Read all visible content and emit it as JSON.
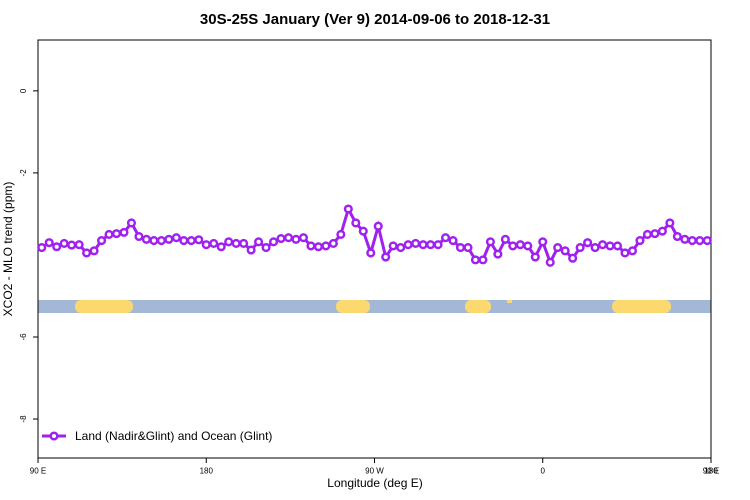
{
  "chart_data": {
    "type": "line",
    "title": "30S-25S January (Ver 9)   2014-09-06 to 2018-12-31",
    "x_label": "Longitude (deg E)",
    "y_label": "XCO2 - MLO trend (ppm)",
    "xlim": [
      90,
      450
    ],
    "xticks": [
      {
        "value": 90,
        "label": "90 E"
      },
      180,
      {
        "value": 270,
        "label": "90 W"
      },
      {
        "value": 360,
        "label": "0"
      },
      {
        "value": 450,
        "label": "90 E"
      },
      {
        "value": 540,
        "label": "180"
      }
    ],
    "ylim": [
      -8.95,
      1.24
    ],
    "yticks": [
      0,
      -2,
      -6,
      -8
    ],
    "legend": "bottom-left",
    "series": [
      {
        "name": "Land (Nadir&Glint) and Ocean (Glint)",
        "color": "#a020f0",
        "x": [
          92,
          96,
          100,
          104,
          108,
          112,
          116,
          120,
          124,
          128,
          132,
          136,
          140,
          144,
          148,
          152,
          156,
          160,
          164,
          168,
          172,
          176,
          180,
          184,
          188,
          192,
          196,
          200,
          204,
          208,
          212,
          216,
          220,
          224,
          228,
          232,
          236,
          240,
          244,
          248,
          252,
          256,
          260,
          264,
          268,
          272,
          276,
          280,
          284,
          288,
          292,
          296,
          300,
          304,
          308,
          312,
          316,
          320,
          324,
          328,
          332,
          336,
          340,
          344,
          348,
          352,
          356,
          360,
          364,
          368,
          372,
          376,
          380,
          384,
          388,
          392,
          396,
          400,
          404,
          408,
          412,
          416,
          420,
          424,
          428,
          432,
          436,
          440,
          444,
          448
        ],
        "values": [
          -3.82,
          -3.7,
          -3.8,
          -3.72,
          -3.76,
          -3.75,
          -3.95,
          -3.9,
          -3.65,
          -3.5,
          -3.48,
          -3.45,
          -3.22,
          -3.55,
          -3.62,
          -3.65,
          -3.65,
          -3.62,
          -3.58,
          -3.65,
          -3.65,
          -3.63,
          -3.75,
          -3.72,
          -3.8,
          -3.68,
          -3.72,
          -3.72,
          -3.88,
          -3.68,
          -3.82,
          -3.68,
          -3.6,
          -3.58,
          -3.62,
          -3.58,
          -3.78,
          -3.8,
          -3.78,
          -3.72,
          -3.5,
          -2.88,
          -3.22,
          -3.42,
          -3.95,
          -3.3,
          -4.05,
          -3.78,
          -3.82,
          -3.75,
          -3.72,
          -3.75,
          -3.75,
          -3.75,
          -3.58,
          -3.65,
          -3.82,
          -3.82,
          -4.12,
          -4.12,
          -3.68,
          -3.98,
          -3.62,
          -3.78,
          -3.75,
          -3.78,
          -4.05,
          -3.68,
          -4.18,
          -3.82,
          -3.9,
          -4.08,
          -3.82,
          -3.7,
          -3.82,
          -3.75,
          -3.78,
          -3.78,
          -3.95,
          -3.9,
          -3.65,
          -3.5,
          -3.48,
          -3.42,
          -3.22,
          -3.55,
          -3.62,
          -3.65,
          -3.65,
          -3.65
        ]
      }
    ]
  }
}
